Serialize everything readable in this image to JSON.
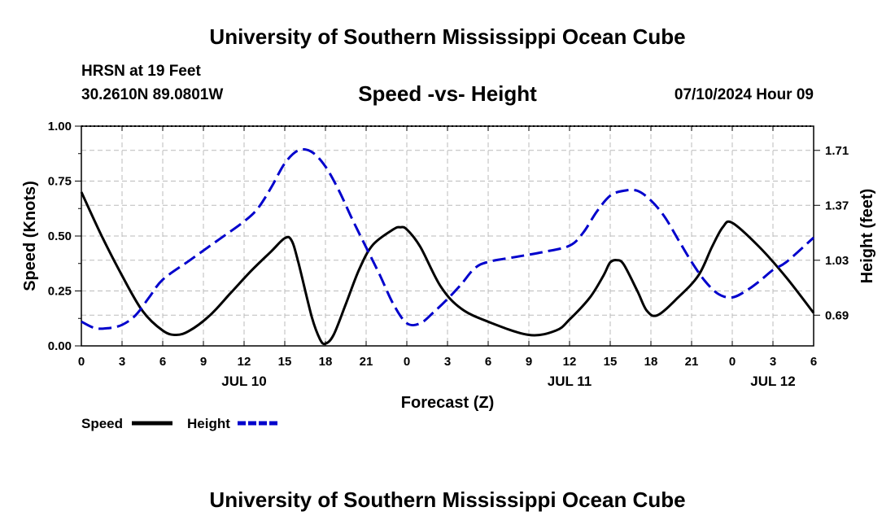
{
  "header": {
    "title": "University of Southern Mississippi Ocean Cube",
    "station": "HRSN at 19 Feet",
    "coords": "30.2610N  89.0801W",
    "subtitle": "Speed -vs- Height",
    "datetime": "07/10/2024 Hour 09"
  },
  "footer": {
    "title": "University of Southern Mississippi Ocean Cube"
  },
  "colors": {
    "speed": "#000000",
    "height": "#0000cc",
    "grid": "#bbbbbb"
  },
  "chart_data": {
    "type": "line",
    "title": "Speed -vs- Height",
    "xlabel": "Forecast (Z)",
    "ylabel": "Speed (Knots)",
    "y2label": "Height (feet)",
    "x_range": [
      0,
      54
    ],
    "x_units": "hours since 2024-07-10 00Z",
    "x_ticks": [
      {
        "x": 0,
        "label": "0"
      },
      {
        "x": 3,
        "label": "3"
      },
      {
        "x": 6,
        "label": "6"
      },
      {
        "x": 9,
        "label": "9"
      },
      {
        "x": 12,
        "label": "12"
      },
      {
        "x": 15,
        "label": "15"
      },
      {
        "x": 18,
        "label": "18"
      },
      {
        "x": 21,
        "label": "21"
      },
      {
        "x": 24,
        "label": "0"
      },
      {
        "x": 27,
        "label": "3"
      },
      {
        "x": 30,
        "label": "6"
      },
      {
        "x": 33,
        "label": "9"
      },
      {
        "x": 36,
        "label": "12"
      },
      {
        "x": 39,
        "label": "15"
      },
      {
        "x": 42,
        "label": "18"
      },
      {
        "x": 45,
        "label": "21"
      },
      {
        "x": 48,
        "label": "0"
      },
      {
        "x": 51,
        "label": "3"
      },
      {
        "x": 54,
        "label": "6"
      }
    ],
    "date_labels": [
      {
        "x": 12,
        "label": "JUL 10"
      },
      {
        "x": 36,
        "label": "JUL 11"
      },
      {
        "x": 51,
        "label": "JUL 12"
      }
    ],
    "ylim": [
      0,
      1.0
    ],
    "y_ticks": [
      0.0,
      0.25,
      0.5,
      0.75,
      1.0
    ],
    "y_tick_labels": [
      "0.00",
      "0.25",
      "0.50",
      "0.75",
      "1.00"
    ],
    "y2lim": [
      0.5,
      1.86
    ],
    "y2_ticks": [
      0.69,
      1.03,
      1.37,
      1.71
    ],
    "y2_tick_labels": [
      "0.69",
      "1.03",
      "1.37",
      "1.71"
    ],
    "legend": [
      {
        "name": "Speed",
        "style": "solid"
      },
      {
        "name": "Height",
        "style": "dashed"
      }
    ],
    "series": [
      {
        "name": "Speed",
        "axis": "left",
        "x": [
          0,
          1.5,
          3,
          4.5,
          6,
          7,
          8,
          9.5,
          11,
          12.5,
          14,
          15,
          15.5,
          16,
          17,
          17.6,
          18,
          18.6,
          19.5,
          20.5,
          21.5,
          23,
          23.5,
          24,
          25,
          26.5,
          28,
          30,
          33,
          35,
          36,
          37.5,
          38.5,
          39,
          39.5,
          40,
          41,
          41.7,
          42.5,
          44,
          45.5,
          46.5,
          47.3,
          48,
          50,
          52,
          54
        ],
        "y": [
          0.7,
          0.5,
          0.32,
          0.16,
          0.07,
          0.05,
          0.07,
          0.14,
          0.24,
          0.34,
          0.43,
          0.49,
          0.48,
          0.38,
          0.13,
          0.03,
          0.01,
          0.05,
          0.19,
          0.35,
          0.46,
          0.53,
          0.54,
          0.53,
          0.45,
          0.27,
          0.17,
          0.11,
          0.05,
          0.07,
          0.12,
          0.22,
          0.32,
          0.38,
          0.39,
          0.37,
          0.25,
          0.16,
          0.14,
          0.22,
          0.32,
          0.45,
          0.54,
          0.56,
          0.45,
          0.31,
          0.15
        ]
      },
      {
        "name": "Height",
        "axis": "right",
        "x": [
          0,
          1,
          2,
          3,
          4,
          5,
          6,
          8,
          10,
          12,
          13,
          14,
          15,
          16,
          17,
          18,
          19,
          20,
          21,
          22,
          23,
          24,
          25,
          26,
          27,
          28,
          29,
          30,
          32,
          34,
          36,
          37,
          38,
          39,
          40,
          41,
          42,
          43,
          44,
          45,
          46,
          47,
          48,
          49,
          50,
          51,
          52,
          54
        ],
        "y": [
          0.65,
          0.61,
          0.61,
          0.63,
          0.69,
          0.8,
          0.91,
          1.03,
          1.15,
          1.27,
          1.35,
          1.48,
          1.63,
          1.71,
          1.7,
          1.61,
          1.46,
          1.28,
          1.11,
          0.94,
          0.76,
          0.64,
          0.64,
          0.71,
          0.79,
          0.88,
          0.98,
          1.02,
          1.05,
          1.08,
          1.12,
          1.2,
          1.33,
          1.43,
          1.46,
          1.46,
          1.4,
          1.3,
          1.16,
          1.02,
          0.9,
          0.82,
          0.8,
          0.84,
          0.9,
          0.97,
          1.02,
          1.17
        ]
      }
    ]
  }
}
